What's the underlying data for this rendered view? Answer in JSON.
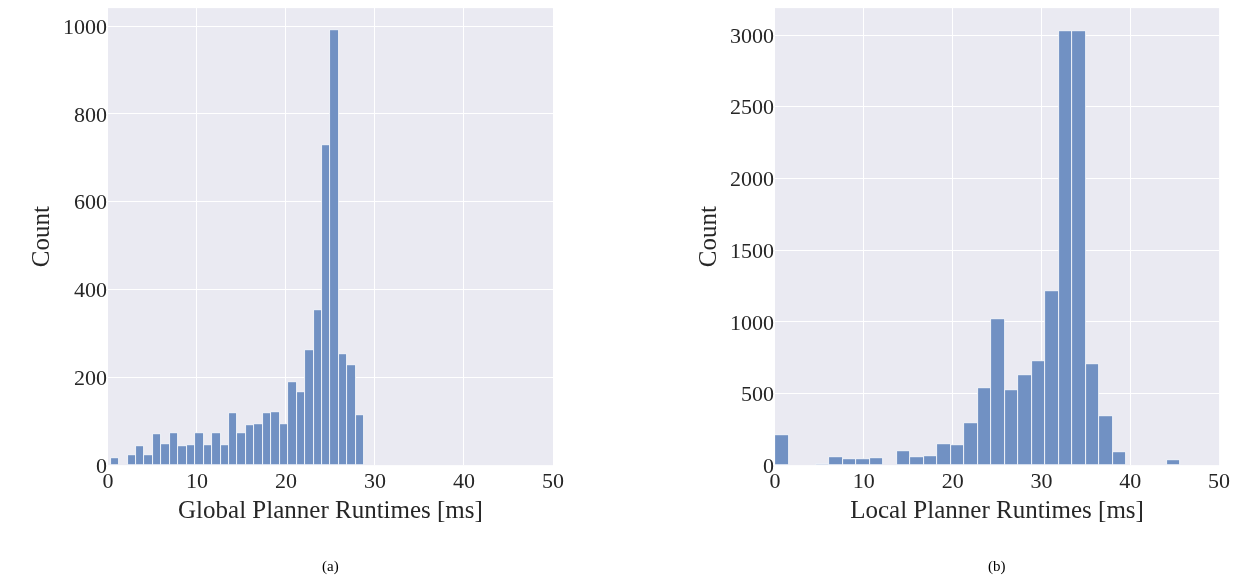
{
  "chart_data": [
    {
      "type": "histogram",
      "xlabel": "Global Planner Runtimes [ms]",
      "ylabel": "Count",
      "annotations": [
        "(a)"
      ],
      "color": "#7191c3",
      "bins": [
        0.3,
        1.25,
        2.2,
        3.15,
        4.1,
        5.05,
        6.0,
        6.95,
        7.9,
        8.85,
        9.8,
        10.75,
        11.7,
        12.65,
        13.6,
        14.55,
        15.5,
        16.45,
        17.4,
        18.35,
        19.3,
        20.25,
        21.2,
        22.15,
        23.1,
        24.05,
        25.0,
        25.95,
        26.9,
        27.85,
        28.8
      ],
      "values": [
        17,
        0,
        22,
        43,
        22,
        70,
        49,
        72,
        43,
        46,
        72,
        46,
        72,
        46,
        118,
        72,
        91,
        94,
        118,
        120,
        94,
        189,
        166,
        262,
        354,
        728,
        992,
        253,
        227,
        113
      ],
      "xlim": [
        0,
        50
      ],
      "xticks": [
        0,
        10,
        20,
        30,
        40,
        50
      ],
      "ylim": [
        0,
        1041
      ],
      "yticks": [
        0,
        200,
        400,
        600,
        800,
        1000
      ],
      "grid": true
    },
    {
      "type": "histogram",
      "xlabel": "Local Planner Runtimes [ms]",
      "ylabel": "Count",
      "annotations": [
        "(b)"
      ],
      "color": "#7191c3",
      "bins": [
        0,
        1.52,
        3.04,
        4.56,
        6.08,
        7.6,
        9.12,
        10.64,
        12.16,
        13.68,
        15.2,
        16.72,
        18.24,
        19.76,
        21.28,
        22.8,
        24.32,
        25.84,
        27.36,
        28.88,
        30.4,
        31.92,
        33.44,
        34.96,
        36.48,
        38.0,
        39.52,
        41.04,
        42.56,
        44.08,
        45.6
      ],
      "values": [
        207,
        0,
        0,
        7,
        54,
        40,
        40,
        47,
        0,
        95,
        54,
        60,
        149,
        139,
        295,
        539,
        1017,
        522,
        627,
        727,
        1212,
        3026,
        3026,
        704,
        341,
        93,
        0,
        0,
        0,
        33
      ],
      "xlim": [
        0,
        50
      ],
      "xticks": [
        0,
        10,
        20,
        30,
        40,
        50
      ],
      "ylim": [
        0,
        3188
      ],
      "yticks": [
        0,
        500,
        1000,
        1500,
        2000,
        2500,
        3000
      ],
      "grid": true
    }
  ]
}
